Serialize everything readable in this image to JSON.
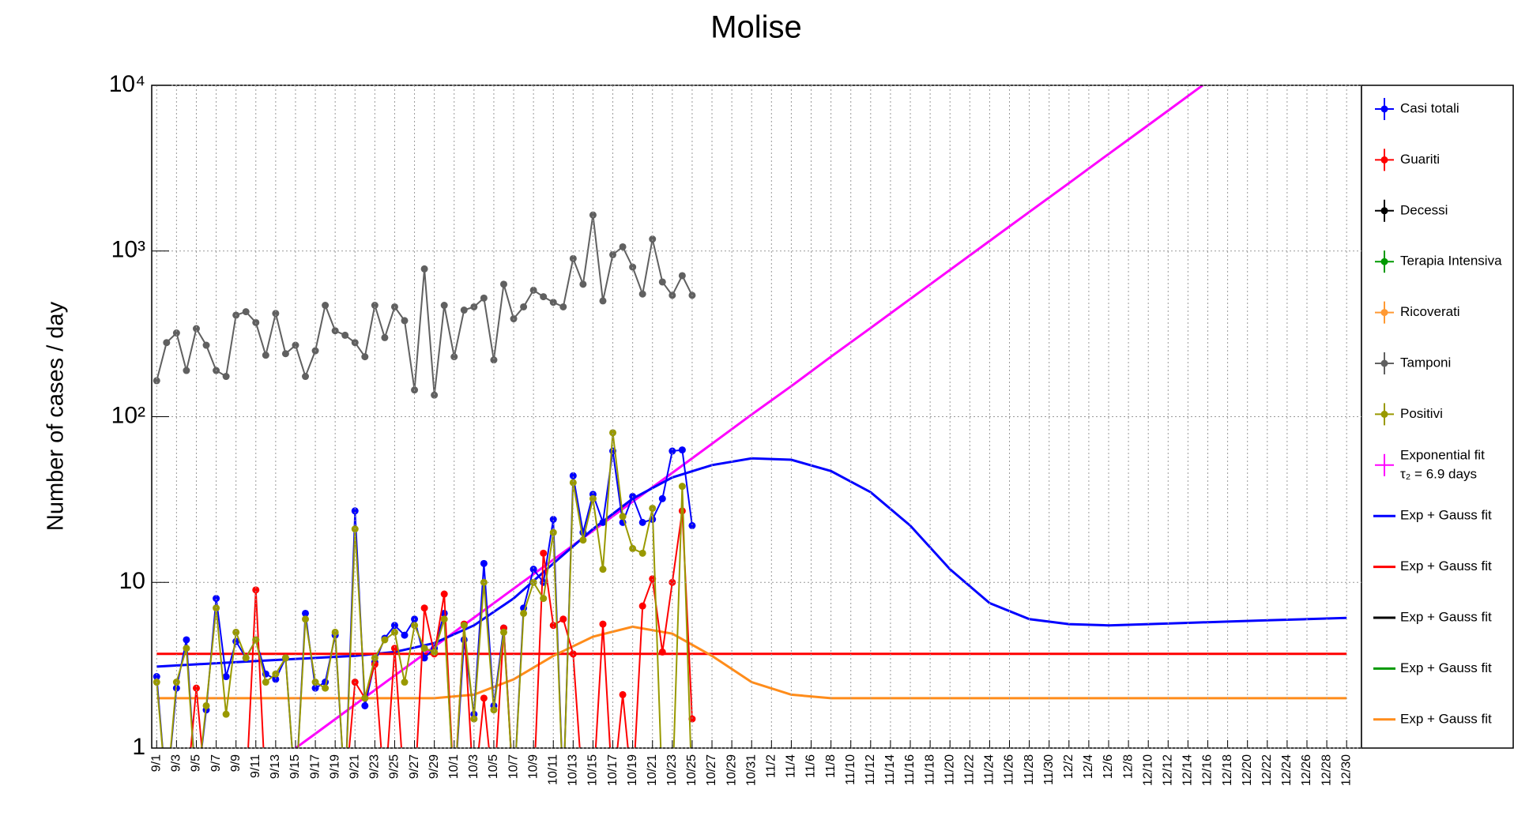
{
  "chart_data": {
    "type": "line",
    "title": "Molise",
    "y_label": "Number of cases / day",
    "log_y": true,
    "grid": true,
    "ylim": [
      1,
      10000
    ],
    "yticks": [
      1,
      10,
      {
        "value": 100,
        "label": "10²"
      },
      {
        "value": 1000,
        "label": "10³"
      },
      {
        "value": 10000,
        "label": "10⁴"
      }
    ],
    "categories": [
      "9/1",
      null,
      "9/3",
      null,
      "9/5",
      null,
      "9/7",
      null,
      "9/9",
      null,
      "9/11",
      null,
      "9/13",
      null,
      "9/15",
      null,
      "9/17",
      null,
      "9/19",
      null,
      "9/21",
      null,
      "9/23",
      null,
      "9/25",
      null,
      "9/27",
      null,
      "9/29",
      null,
      "10/1",
      null,
      "10/3",
      null,
      "10/5",
      null,
      "10/7",
      null,
      "10/9",
      null,
      "10/11",
      null,
      "10/13",
      null,
      "10/15",
      null,
      "10/17",
      null,
      "10/19",
      null,
      "10/21",
      null,
      "10/23",
      null,
      "10/25",
      null,
      "10/27",
      null,
      "10/29",
      null,
      "10/31",
      null,
      "11/2",
      null,
      "11/4",
      null,
      "11/6",
      null,
      "11/8",
      null,
      "11/10",
      null,
      "11/12",
      null,
      "11/14",
      null,
      "11/16",
      null,
      "11/18",
      null,
      "11/20",
      null,
      "11/22",
      null,
      "11/24",
      null,
      "11/26",
      null,
      "11/28",
      null,
      "11/30",
      null,
      "12/2",
      null,
      "12/4",
      null,
      "12/6",
      null,
      "12/8",
      null,
      "12/10",
      null,
      "12/12",
      null,
      "12/14",
      null,
      "12/16",
      null,
      "12/18",
      null,
      "12/20",
      null,
      "12/22",
      null,
      "12/24",
      null,
      "12/26",
      null,
      "12/28",
      null,
      "12/30",
      null
    ],
    "series": [
      {
        "name": "Casi totali",
        "color": "#0000ff",
        "values": [
          2.7,
          0,
          2.3,
          4.5,
          0,
          1.7,
          8,
          2.7,
          4.4,
          3.5,
          4.5,
          2.8,
          2.6,
          3.5,
          0,
          6.5,
          2.3,
          2.5,
          4.8,
          0,
          27,
          1.8,
          3.3,
          4.6,
          5.5,
          4.8,
          6,
          3.5,
          4,
          6.5,
          0,
          4.5,
          1.6,
          13,
          1.8,
          5.3,
          0,
          7,
          12,
          10,
          24,
          0,
          44,
          20,
          34,
          23,
          62,
          23,
          33,
          23,
          24,
          32,
          62,
          63,
          22,
          null,
          null,
          null,
          null,
          null,
          null,
          null,
          null,
          null,
          null,
          null,
          null,
          null,
          null,
          null,
          null,
          null,
          null,
          null,
          null,
          null,
          null,
          null,
          null,
          null,
          null,
          null,
          null,
          null,
          null,
          null,
          null,
          null,
          null,
          null,
          null,
          null,
          null,
          null,
          null,
          null,
          null,
          null,
          null,
          null,
          null,
          null,
          null,
          null,
          null,
          null,
          null,
          null,
          null,
          null,
          null,
          null,
          null,
          null,
          null,
          null,
          null,
          null,
          null,
          null,
          null,
          null
        ]
      },
      {
        "name": "Guariti",
        "color": "#ff0000",
        "values": [
          0,
          0,
          0,
          0,
          2.3,
          0,
          0,
          0,
          0,
          0,
          9,
          0,
          0,
          0,
          0,
          0,
          0,
          0,
          0,
          0,
          2.5,
          2,
          3.2,
          0,
          4,
          0,
          0,
          7,
          3.7,
          8.5,
          0,
          5.6,
          0,
          2,
          0,
          5.3,
          0,
          0,
          0,
          15,
          5.5,
          6,
          3.7,
          0,
          0,
          5.6,
          0,
          2.1,
          0,
          7.2,
          10.5,
          3.8,
          10,
          27,
          1.5,
          null,
          null,
          null,
          null,
          null,
          null,
          null,
          null,
          null,
          null,
          null,
          null,
          null,
          null,
          null,
          null,
          null,
          null,
          null,
          null,
          null,
          null,
          null,
          null,
          null,
          null,
          null,
          null,
          null,
          null,
          null,
          null,
          null,
          null,
          null,
          null,
          null,
          null,
          null,
          null,
          null,
          null,
          null,
          null,
          null,
          null,
          null,
          null,
          null,
          null,
          null,
          null,
          null,
          null,
          null,
          null,
          null,
          null,
          null,
          null,
          null,
          null,
          null,
          null,
          null,
          null,
          null
        ]
      },
      {
        "name": "Decessi",
        "color": "#000000",
        "values": [
          0,
          0,
          0,
          0,
          0,
          0,
          0,
          0,
          0,
          0,
          0,
          0,
          0,
          0,
          0,
          0,
          0,
          0,
          0,
          0,
          0,
          0,
          0,
          0,
          0,
          0,
          0,
          0,
          0,
          0,
          0,
          0,
          0,
          0,
          0,
          0,
          0,
          0,
          0,
          0,
          0,
          0,
          0,
          0,
          0,
          0,
          0,
          0,
          0,
          0,
          0,
          0,
          0,
          0,
          0,
          null,
          null,
          null,
          null,
          null,
          null,
          null,
          null,
          null,
          null,
          null,
          null,
          null,
          null,
          null,
          null,
          null,
          null,
          null,
          null,
          null,
          null,
          null,
          null,
          null,
          null,
          null,
          null,
          null,
          null,
          null,
          null,
          null,
          null,
          null,
          null,
          null,
          null,
          null,
          null,
          null,
          null,
          null,
          null,
          null,
          null,
          null,
          null,
          null,
          null,
          null,
          null,
          null,
          null,
          null,
          null,
          null,
          null,
          null,
          null,
          null,
          null,
          null,
          null,
          null,
          null,
          null
        ]
      },
      {
        "name": "Terapia Intensiva",
        "color": "#009900",
        "values": [
          0,
          0,
          0,
          0,
          0,
          0,
          0,
          0,
          0,
          0,
          0,
          0,
          0,
          0,
          0,
          0,
          0,
          0,
          0,
          0,
          0,
          0,
          0,
          0,
          0,
          0,
          0,
          0,
          0,
          0,
          0,
          0,
          0,
          0,
          0,
          0,
          0,
          0,
          0,
          0,
          0,
          0,
          0,
          0,
          0,
          0,
          0,
          0,
          0,
          0,
          0,
          0,
          0,
          0,
          0,
          null,
          null,
          null,
          null,
          null,
          null,
          null,
          null,
          null,
          null,
          null,
          null,
          null,
          null,
          null,
          null,
          null,
          null,
          null,
          null,
          null,
          null,
          null,
          null,
          null,
          null,
          null,
          null,
          null,
          null,
          null,
          null,
          null,
          null,
          null,
          null,
          null,
          null,
          null,
          null,
          null,
          null,
          null,
          null,
          null,
          null,
          null,
          null,
          null,
          null,
          null,
          null,
          null,
          null,
          null,
          null,
          null,
          null,
          null,
          null,
          null,
          null,
          null,
          null,
          null,
          null,
          null
        ]
      },
      {
        "name": "Ricoverati",
        "color": "#ff9933",
        "values": [
          0,
          0,
          0,
          0,
          0,
          0,
          0,
          0,
          0,
          0,
          0,
          0,
          0,
          0,
          0,
          0,
          0,
          0,
          0,
          0,
          0,
          0,
          0,
          0,
          0,
          0,
          0,
          0,
          0,
          0,
          0,
          0,
          0,
          0,
          0,
          0,
          0,
          0,
          0,
          0,
          0,
          0,
          0,
          0,
          0,
          0,
          0,
          0,
          0,
          0,
          0,
          0,
          0,
          0,
          0,
          null,
          null,
          null,
          null,
          null,
          null,
          null,
          null,
          null,
          null,
          null,
          null,
          null,
          null,
          null,
          null,
          null,
          null,
          null,
          null,
          null,
          null,
          null,
          null,
          null,
          null,
          null,
          null,
          null,
          null,
          null,
          null,
          null,
          null,
          null,
          null,
          null,
          null,
          null,
          null,
          null,
          null,
          null,
          null,
          null,
          null,
          null,
          null,
          null,
          null,
          null,
          null,
          null,
          null,
          null,
          null,
          null,
          null,
          null,
          null,
          null,
          null,
          null,
          null,
          null,
          null,
          null
        ]
      },
      {
        "name": "Tamponi",
        "color": "#606060",
        "values": [
          165,
          280,
          320,
          190,
          340,
          270,
          190,
          175,
          410,
          430,
          370,
          235,
          420,
          240,
          270,
          175,
          250,
          470,
          330,
          310,
          280,
          230,
          470,
          300,
          460,
          380,
          145,
          780,
          135,
          470,
          230,
          440,
          460,
          520,
          220,
          630,
          390,
          460,
          580,
          530,
          490,
          460,
          900,
          630,
          1650,
          500,
          950,
          1060,
          800,
          550,
          1180,
          650,
          540,
          710,
          540,
          null,
          null,
          null,
          null,
          null,
          null,
          null,
          null,
          null,
          null,
          null,
          null,
          null,
          null,
          null,
          null,
          null,
          null,
          null,
          null,
          null,
          null,
          null,
          null,
          null,
          null,
          null,
          null,
          null,
          null,
          null,
          null,
          null,
          null,
          null,
          null,
          null,
          null,
          null,
          null,
          null,
          null,
          null,
          null,
          null,
          null,
          null,
          null,
          null,
          null,
          null,
          null,
          null,
          null,
          null,
          null,
          null,
          null,
          null,
          null,
          null,
          null,
          null,
          null,
          null,
          null,
          null
        ]
      },
      {
        "name": "Positivi",
        "color": "#999900",
        "values": [
          2.5,
          0,
          2.5,
          4,
          0,
          1.8,
          7,
          1.6,
          5,
          3.5,
          4.5,
          2.5,
          2.8,
          3.5,
          0,
          6,
          2.5,
          2.3,
          5,
          0,
          21,
          2,
          3.5,
          4.5,
          5,
          2.5,
          5.5,
          4,
          3.8,
          6,
          0,
          5.5,
          1.5,
          10,
          1.7,
          5,
          0,
          6.5,
          10,
          8,
          20,
          0,
          40,
          18,
          32,
          12,
          80,
          25,
          16,
          15,
          28,
          0,
          0,
          38,
          0,
          null,
          null,
          null,
          null,
          null,
          null,
          null,
          null,
          null,
          null,
          null,
          null,
          null,
          null,
          null,
          null,
          null,
          null,
          null,
          null,
          null,
          null,
          null,
          null,
          null,
          null,
          null,
          null,
          null,
          null,
          null,
          null,
          null,
          null,
          null,
          null,
          null,
          null,
          null,
          null,
          null,
          null,
          null,
          null,
          null,
          null,
          null,
          null,
          null,
          null,
          null,
          null,
          null,
          null,
          null,
          null,
          null,
          null,
          null,
          null,
          null,
          null,
          null,
          null,
          null,
          null,
          null
        ]
      }
    ],
    "fit_x": [
      "9/1",
      "9/5",
      "9/9",
      "9/13",
      "9/17",
      "9/21",
      "9/25",
      "9/29",
      "10/3",
      "10/7",
      "10/11",
      "10/15",
      "10/19",
      "10/23",
      "10/27",
      "10/31",
      "11/4",
      "11/8",
      "11/12",
      "11/16",
      "11/20",
      "11/24",
      "11/28",
      "12/2",
      "12/6",
      "12/10",
      "12/14",
      "12/18",
      "12/22",
      "12/26",
      "12/30"
    ],
    "fits": [
      {
        "name": "Exponential fit",
        "parameter": "τ₂ = 6.9 days",
        "color": "#ff00ff",
        "values": [
          0.244,
          0.366,
          0.547,
          0.818,
          1.22,
          1.83,
          2.74,
          4.09,
          6.12,
          9.16,
          13.7,
          20.5,
          30.7,
          45.8,
          68.6,
          103,
          153,
          230,
          343,
          514,
          769,
          1150,
          1720,
          2570,
          3850,
          5750,
          8610,
          12900,
          19300,
          28800,
          43200
        ]
      },
      {
        "name": "Exp + Gauss fit",
        "color": "#0000ff",
        "values": [
          3.1,
          3.2,
          3.3,
          3.4,
          3.5,
          3.6,
          3.8,
          4.3,
          5.5,
          8,
          13,
          21,
          32,
          43,
          51,
          56,
          55,
          47,
          35,
          22,
          12,
          7.5,
          6,
          5.6,
          5.5,
          5.6,
          5.7,
          5.8,
          5.9,
          6.0,
          6.1
        ]
      },
      {
        "name": "Exp + Gauss fit",
        "color": "#ff0000",
        "values": [
          3.7,
          3.7,
          3.7,
          3.7,
          3.7,
          3.7,
          3.7,
          3.7,
          3.7,
          3.7,
          3.7,
          3.7,
          3.7,
          3.7,
          3.7,
          3.7,
          3.7,
          3.7,
          3.7,
          3.7,
          3.7,
          3.7,
          3.7,
          3.7,
          3.7,
          3.7,
          3.7,
          3.7,
          3.7,
          3.7,
          3.7
        ]
      },
      {
        "name": "Exp + Gauss fit",
        "color": "#000000"
      },
      {
        "name": "Exp + Gauss fit",
        "color": "#009900"
      },
      {
        "name": "Exp + Gauss fit",
        "color": "#ff8c1a",
        "values": [
          2,
          2,
          2,
          2,
          2,
          2,
          2,
          2,
          2.1,
          2.6,
          3.6,
          4.7,
          5.4,
          4.9,
          3.6,
          2.5,
          2.1,
          2,
          2,
          2,
          2,
          2,
          2,
          2,
          2,
          2,
          2,
          2,
          2,
          2,
          2
        ]
      }
    ]
  }
}
